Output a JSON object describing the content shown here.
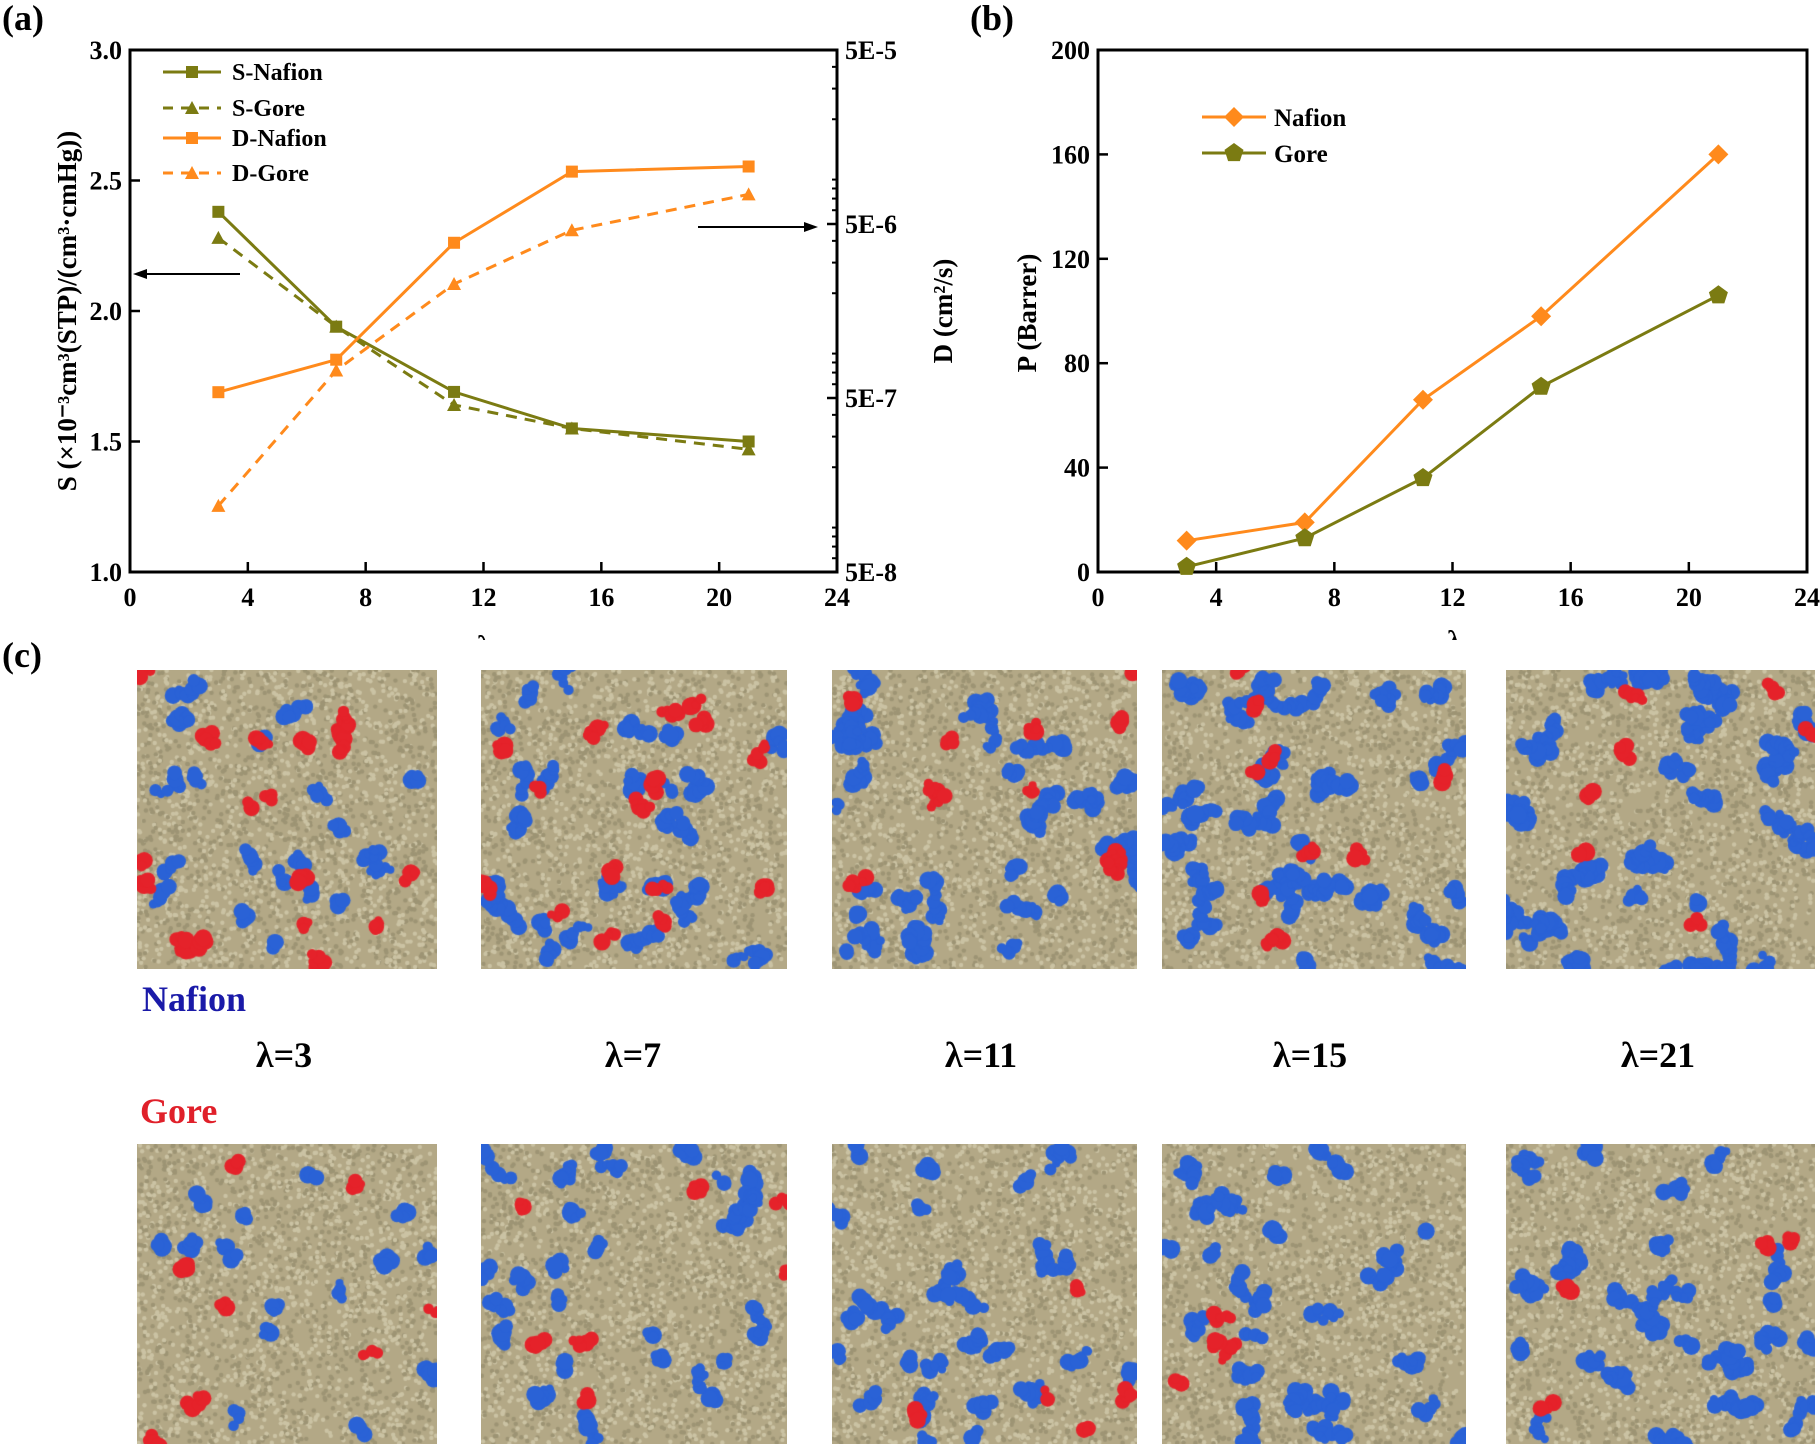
{
  "chart_data": [
    {
      "panel_label": "(a)",
      "type": "line",
      "x": [
        3,
        7,
        11,
        15,
        21
      ],
      "xlabel": "λ",
      "xlim": [
        0,
        24
      ],
      "xticks": [
        "0",
        "4",
        "8",
        "12",
        "16",
        "20",
        "24"
      ],
      "ylabel_left": "S (×10⁻³cm³(STP)/(cm³·cmHg))",
      "ylim_left": [
        1.0,
        3.0
      ],
      "yticks_left": [
        "1.0",
        "1.5",
        "2.0",
        "2.5",
        "3.0"
      ],
      "ylabel_right": "D (cm²/s)",
      "ylim_right": [
        5e-08,
        5e-05
      ],
      "yscale_right": "log",
      "yticks_right": [
        "5E-8",
        "5E-7",
        "5E-6",
        "5E-5"
      ],
      "legend_placement": "top-left",
      "grid": false,
      "series": [
        {
          "name": "S-Nafion",
          "axis": "left",
          "color": "#7b7b12",
          "marker": "square",
          "line": "solid",
          "values": [
            2.38,
            1.94,
            1.69,
            1.55,
            1.5
          ]
        },
        {
          "name": "S-Gore",
          "axis": "left",
          "color": "#7b7b12",
          "marker": "triangle",
          "line": "dashed",
          "values": [
            2.28,
            1.94,
            1.64,
            1.55,
            1.47
          ]
        },
        {
          "name": "D-Nafion",
          "axis": "right",
          "color": "#ff8a1c",
          "marker": "square",
          "line": "solid",
          "values": [
            5.4e-07,
            8.3e-07,
            3.9e-06,
            1e-05,
            1.07e-05
          ]
        },
        {
          "name": "D-Gore",
          "axis": "right",
          "color": "#ff8a1c",
          "marker": "triangle",
          "line": "dashed",
          "values": [
            1.2e-07,
            7.2e-07,
            2.26e-06,
            4.6e-06,
            7.4e-06
          ]
        }
      ],
      "annotations": [
        "arrow pointing to left axis (S)",
        "arrow pointing to right axis (D)"
      ]
    },
    {
      "panel_label": "(b)",
      "type": "line",
      "x": [
        3,
        7,
        11,
        15,
        21
      ],
      "xlabel": "λ",
      "xlim": [
        0,
        24
      ],
      "xticks": [
        "0",
        "4",
        "8",
        "12",
        "16",
        "20",
        "24"
      ],
      "ylabel": "P (Barrer)",
      "ylim": [
        0,
        200
      ],
      "yticks": [
        "0",
        "40",
        "80",
        "120",
        "160",
        "200"
      ],
      "legend_placement": "top-left",
      "grid": false,
      "series": [
        {
          "name": "Nafion",
          "color": "#ff8a1c",
          "marker": "diamond",
          "line": "solid",
          "values": [
            12,
            19,
            66,
            98,
            160
          ]
        },
        {
          "name": "Gore",
          "color": "#7b7b12",
          "marker": "pentagon",
          "line": "solid",
          "values": [
            2,
            13,
            36,
            71,
            106
          ]
        }
      ]
    }
  ],
  "panel_c": {
    "panel_label": "(c)",
    "row_labels": {
      "nafion": "Nafion",
      "gore": "Gore"
    },
    "row_label_colors": {
      "nafion": "#1a1aa8",
      "gore": "#e0202a"
    },
    "column_labels": [
      "λ=3",
      "λ=7",
      "λ=11",
      "λ=15",
      "λ=21"
    ],
    "colors": {
      "matrix": "#b3a886",
      "water": "#2a62d6",
      "probe": "#e5222a"
    }
  }
}
